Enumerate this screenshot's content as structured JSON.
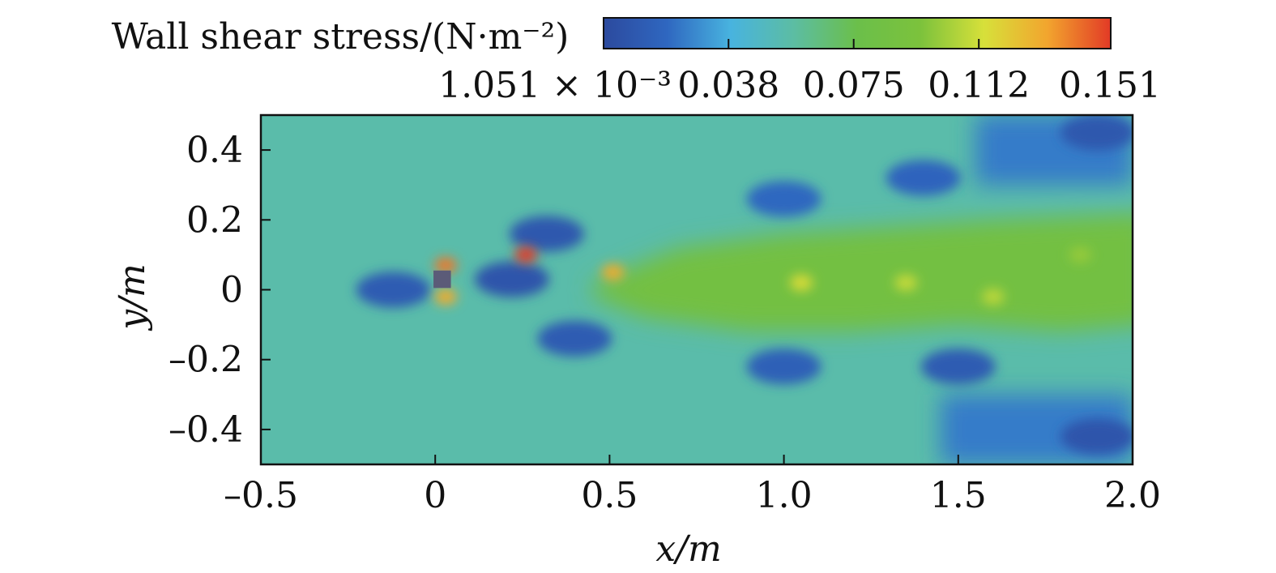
{
  "chart_data": {
    "type": "heatmap",
    "title": "",
    "xlabel": "x/m",
    "ylabel": "y/m",
    "xlim": [
      -0.5,
      2.0
    ],
    "ylim": [
      -0.5,
      0.5
    ],
    "x_ticks": [
      -0.5,
      0,
      0.5,
      1.0,
      1.5,
      2.0
    ],
    "x_tick_labels": [
      "–0.5",
      "0",
      "0.5",
      "1.0",
      "1.5",
      "2.0"
    ],
    "y_ticks": [
      0.4,
      0.2,
      0,
      -0.2,
      -0.4
    ],
    "y_tick_labels": [
      "0.4",
      "0.2",
      "0",
      "–0.2",
      "–0.4"
    ],
    "colorbar": {
      "label": "Wall shear stress/(N·m⁻²)",
      "range": [
        0.001051,
        0.151
      ],
      "tick_values": [
        0.001051,
        0.038,
        0.075,
        0.112,
        0.151
      ],
      "tick_labels": [
        "1.051 × 10⁻³",
        "0.038",
        "0.075",
        "0.112",
        "0.151"
      ],
      "colormap": [
        "#2c4a9e",
        "#2f67c0",
        "#48b3df",
        "#5cbda3",
        "#6bbf4a",
        "#7cc23c",
        "#d7e03a",
        "#f2a52e",
        "#e23a26"
      ]
    },
    "field_features": {
      "background_value": 0.055,
      "obstacle": {
        "x": 0.02,
        "y": 0.03,
        "size": 0.05,
        "color": "#5b5b78"
      },
      "high_spots": [
        {
          "x": 0.03,
          "y": 0.07,
          "value": 0.14
        },
        {
          "x": 0.03,
          "y": -0.02,
          "value": 0.13
        },
        {
          "x": 0.26,
          "y": 0.1,
          "value": 0.151
        },
        {
          "x": 0.51,
          "y": 0.05,
          "value": 0.13
        },
        {
          "x": 1.05,
          "y": 0.02,
          "value": 0.115
        },
        {
          "x": 1.35,
          "y": 0.02,
          "value": 0.11
        },
        {
          "x": 1.6,
          "y": -0.02,
          "value": 0.108
        },
        {
          "x": 1.85,
          "y": 0.1,
          "value": 0.1
        }
      ],
      "low_zones": [
        {
          "x": -0.12,
          "y": 0.0,
          "value": 0.012
        },
        {
          "x": 0.22,
          "y": 0.03,
          "value": 0.008
        },
        {
          "x": 0.32,
          "y": 0.16,
          "value": 0.01
        },
        {
          "x": 0.4,
          "y": -0.14,
          "value": 0.012
        },
        {
          "x": 1.0,
          "y": -0.22,
          "value": 0.015
        },
        {
          "x": 1.5,
          "y": -0.22,
          "value": 0.012
        },
        {
          "x": 1.9,
          "y": -0.42,
          "value": 0.008
        },
        {
          "x": 1.9,
          "y": 0.45,
          "value": 0.01
        },
        {
          "x": 1.4,
          "y": 0.32,
          "value": 0.018
        },
        {
          "x": 1.0,
          "y": 0.26,
          "value": 0.02
        }
      ]
    }
  }
}
